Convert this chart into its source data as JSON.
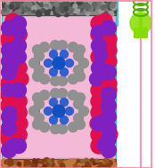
{
  "fig_width": 1.74,
  "fig_height": 1.89,
  "dpi": 100,
  "outer_bg": "#ffffff",
  "cell_facecolor": "#f0a8cc",
  "cell_edge_color": "#40b8c8",
  "cell_lw": 1.0,
  "top_elec_color": "#888888",
  "top_elec_dot": "#555555",
  "bot_elec_color": "#c87830",
  "bot_elec_dot": "#905020",
  "wire_pink": "#ff80a0",
  "wire_cyan": "#40b8c8",
  "bulb_green": "#88dd00",
  "bulb_coil": "#55aa00",
  "sphere_red": "#e01050",
  "sphere_purple": "#8020c0",
  "sphere_gray": "#909090",
  "sphere_blue": "#1050c0",
  "sphere_blue_sm": "#3060d0"
}
